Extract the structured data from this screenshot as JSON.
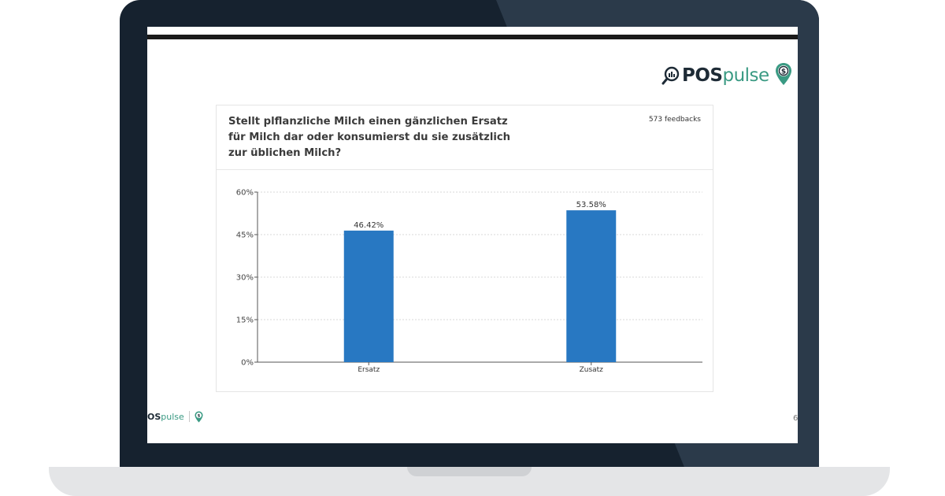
{
  "brand": {
    "pos": "POS",
    "pulse": "pulse",
    "dark_color": "#1e2b36",
    "accent_color": "#3a9a83"
  },
  "card": {
    "question": "Stellt plflanzliche Milch einen gänzlichen Ersatz für Milch dar oder konsumierst du sie zusätzlich zur üblichen Milch?",
    "feedbacks": "573 feedbacks"
  },
  "footer": {
    "pos": "OS",
    "pulse": "pulse",
    "page_mark": "6"
  },
  "chart_data": {
    "type": "bar",
    "categories": [
      "Ersatz",
      "Zusatz"
    ],
    "values": [
      46.42,
      53.58
    ],
    "data_labels": [
      "46.42%",
      "53.58%"
    ],
    "yticks": [
      "0%",
      "15%",
      "30%",
      "45%",
      "60%"
    ],
    "ytick_values": [
      0,
      15,
      30,
      45,
      60
    ],
    "ylim": [
      0,
      60
    ],
    "title": "",
    "xlabel": "",
    "ylabel": "",
    "bar_color": "#2878c2",
    "grid": true
  }
}
